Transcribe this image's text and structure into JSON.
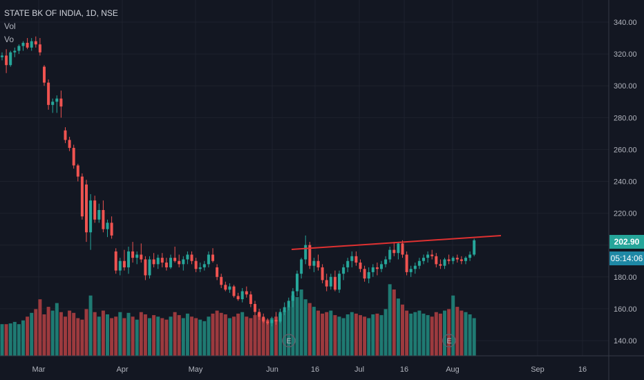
{
  "legend": {
    "symbol": "STATE BK OF INDIA, 1D, NSE",
    "vol": "Vol",
    "vol2": "Vo"
  },
  "last_price": "202.90",
  "countdown": "05:14:06",
  "colors": {
    "up": "#26a69a",
    "down": "#ef5350",
    "vol_up": "#1f7a72",
    "vol_down": "#9c3a3e",
    "trend": "#e03131",
    "price_tag": "#26a69a",
    "time_tag": "#1e88a5",
    "bg": "#131722",
    "grid": "#1e222d"
  },
  "chart_data": {
    "type": "candlestick",
    "title": "STATE BK OF INDIA, 1D, NSE",
    "ylim": [
      130,
      348
    ],
    "y_ticks": [
      "340.00",
      "320.00",
      "300.00",
      "280.00",
      "260.00",
      "240.00",
      "220.00",
      "200.00",
      "180.00",
      "160.00",
      "140.00"
    ],
    "x_ticks": [
      "Mar",
      "Apr",
      "May",
      "Jun",
      "16",
      "Jul",
      "16",
      "Aug",
      "Sep",
      "16"
    ],
    "candles": [
      [
        318,
        321,
        316,
        319
      ],
      [
        319,
        323,
        308,
        313
      ],
      [
        313,
        322,
        312,
        321
      ],
      [
        321,
        324,
        318,
        322
      ],
      [
        322,
        326,
        320,
        325
      ],
      [
        325,
        328,
        322,
        327
      ],
      [
        327,
        330,
        323,
        324
      ],
      [
        324,
        330,
        322,
        328
      ],
      [
        328,
        331,
        324,
        326
      ],
      [
        326,
        330,
        319,
        321
      ],
      [
        312,
        313,
        300,
        302
      ],
      [
        302,
        304,
        285,
        288
      ],
      [
        288,
        292,
        283,
        290
      ],
      [
        290,
        294,
        283,
        292
      ],
      [
        292,
        297,
        280,
        287
      ],
      [
        272,
        274,
        264,
        266
      ],
      [
        266,
        268,
        259,
        261
      ],
      [
        261,
        263,
        248,
        250
      ],
      [
        250,
        251,
        240,
        243
      ],
      [
        243,
        245,
        216,
        218
      ],
      [
        238,
        241,
        202,
        208
      ],
      [
        208,
        232,
        197,
        228
      ],
      [
        228,
        231,
        214,
        216
      ],
      [
        216,
        226,
        214,
        222
      ],
      [
        222,
        228,
        208,
        210
      ],
      [
        210,
        216,
        205,
        214
      ],
      [
        214,
        218,
        204,
        206
      ],
      [
        196,
        198,
        182,
        184
      ],
      [
        184,
        192,
        181,
        190
      ],
      [
        190,
        197,
        184,
        186
      ],
      [
        186,
        199,
        182,
        196
      ],
      [
        196,
        202,
        189,
        192
      ],
      [
        192,
        196,
        188,
        194
      ],
      [
        194,
        201,
        189,
        191
      ],
      [
        191,
        193,
        178,
        181
      ],
      [
        181,
        193,
        179,
        191
      ],
      [
        191,
        195,
        186,
        188
      ],
      [
        188,
        194,
        185,
        192
      ],
      [
        192,
        195,
        186,
        189
      ],
      [
        189,
        192,
        184,
        186
      ],
      [
        186,
        194,
        185,
        192
      ],
      [
        192,
        199,
        189,
        190
      ],
      [
        190,
        194,
        186,
        188
      ],
      [
        188,
        193,
        184,
        191
      ],
      [
        191,
        196,
        188,
        194
      ],
      [
        194,
        196,
        188,
        190
      ],
      [
        190,
        192,
        183,
        185
      ],
      [
        185,
        189,
        183,
        186
      ],
      [
        186,
        190,
        184,
        188
      ],
      [
        188,
        196,
        186,
        194
      ],
      [
        194,
        198,
        189,
        190
      ],
      [
        186,
        188,
        178,
        180
      ],
      [
        180,
        182,
        173,
        175
      ],
      [
        175,
        177,
        171,
        172
      ],
      [
        172,
        176,
        170,
        174
      ],
      [
        174,
        175,
        167,
        168
      ],
      [
        168,
        170,
        165,
        166
      ],
      [
        166,
        173,
        164,
        171
      ],
      [
        171,
        174,
        167,
        169
      ],
      [
        169,
        171,
        161,
        163
      ],
      [
        163,
        165,
        156,
        158
      ],
      [
        158,
        160,
        153,
        155
      ],
      [
        155,
        157,
        151,
        152
      ],
      [
        152,
        154,
        150,
        151
      ],
      [
        151,
        155,
        149,
        153
      ],
      [
        153,
        158,
        150,
        152
      ],
      [
        152,
        160,
        151,
        158
      ],
      [
        158,
        164,
        156,
        161
      ],
      [
        161,
        167,
        159,
        165
      ],
      [
        165,
        173,
        161,
        171
      ],
      [
        171,
        184,
        168,
        182
      ],
      [
        182,
        192,
        179,
        191
      ],
      [
        191,
        206,
        188,
        200
      ],
      [
        200,
        202,
        185,
        187
      ],
      [
        187,
        192,
        183,
        190
      ],
      [
        190,
        194,
        184,
        186
      ],
      [
        186,
        188,
        176,
        178
      ],
      [
        178,
        182,
        171,
        174
      ],
      [
        174,
        182,
        172,
        180
      ],
      [
        180,
        184,
        171,
        172
      ],
      [
        172,
        184,
        170,
        182
      ],
      [
        182,
        188,
        178,
        186
      ],
      [
        186,
        192,
        183,
        190
      ],
      [
        190,
        196,
        186,
        193
      ],
      [
        193,
        196,
        187,
        189
      ],
      [
        189,
        191,
        183,
        185
      ],
      [
        185,
        187,
        177,
        179
      ],
      [
        179,
        186,
        176,
        183
      ],
      [
        183,
        188,
        180,
        186
      ],
      [
        186,
        189,
        181,
        185
      ],
      [
        185,
        190,
        183,
        188
      ],
      [
        188,
        193,
        186,
        191
      ],
      [
        191,
        199,
        189,
        197
      ],
      [
        197,
        202,
        193,
        195
      ],
      [
        195,
        202,
        191,
        201
      ],
      [
        201,
        203,
        192,
        194
      ],
      [
        194,
        196,
        181,
        183
      ],
      [
        183,
        187,
        180,
        185
      ],
      [
        185,
        189,
        182,
        187
      ],
      [
        187,
        192,
        185,
        190
      ],
      [
        190,
        194,
        188,
        192
      ],
      [
        192,
        196,
        189,
        194
      ],
      [
        194,
        197,
        191,
        193
      ],
      [
        193,
        195,
        186,
        188
      ],
      [
        188,
        191,
        185,
        187
      ],
      [
        187,
        192,
        185,
        191
      ],
      [
        191,
        194,
        188,
        190
      ],
      [
        190,
        193,
        188,
        192
      ],
      [
        192,
        194,
        189,
        191
      ],
      [
        191,
        193,
        188,
        190
      ],
      [
        190,
        193,
        188,
        192
      ],
      [
        192,
        196,
        190,
        194
      ],
      [
        194,
        204,
        193,
        203
      ]
    ],
    "volume": [
      42,
      42,
      43,
      45,
      42,
      47,
      52,
      57,
      62,
      75,
      55,
      65,
      60,
      70,
      58,
      52,
      60,
      57,
      50,
      48,
      62,
      80,
      58,
      52,
      60,
      55,
      50,
      52,
      58,
      50,
      57,
      52,
      48,
      58,
      55,
      50,
      54,
      52,
      50,
      48,
      52,
      58,
      54,
      50,
      56,
      52,
      50,
      48,
      46,
      52,
      56,
      60,
      57,
      55,
      50,
      52,
      56,
      58,
      52,
      50,
      54,
      56,
      50,
      48,
      50,
      52,
      56,
      60,
      65,
      80,
      78,
      88,
      75,
      70,
      65,
      60,
      56,
      58,
      60,
      54,
      52,
      50,
      55,
      58,
      56,
      54,
      52,
      50,
      55,
      56,
      54,
      62,
      95,
      88,
      76,
      68,
      60,
      56,
      58,
      60,
      56,
      54,
      52,
      58,
      56,
      60,
      62,
      80,
      65,
      60,
      58,
      55,
      50
    ]
  }
}
